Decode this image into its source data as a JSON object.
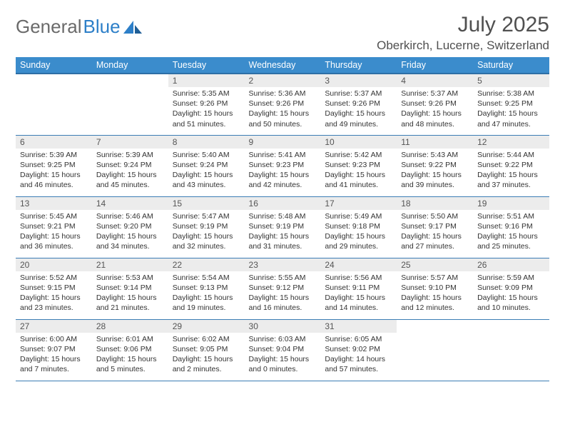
{
  "brand": {
    "part1": "General",
    "part2": "Blue"
  },
  "title": "July 2025",
  "location": "Oberkirch, Lucerne, Switzerland",
  "colors": {
    "header_bg": "#3b8ccc",
    "header_border": "#2d6fa6",
    "row_border": "#3b7db5",
    "daynum_bg": "#ececec",
    "text": "#333333",
    "brand_gray": "#6a6a6a",
    "brand_blue": "#2d7fc8"
  },
  "week_days": [
    "Sunday",
    "Monday",
    "Tuesday",
    "Wednesday",
    "Thursday",
    "Friday",
    "Saturday"
  ],
  "first_weekday_index": 2,
  "days": [
    {
      "n": 1,
      "sunrise": "5:35 AM",
      "sunset": "9:26 PM",
      "daylight": "15 hours and 51 minutes."
    },
    {
      "n": 2,
      "sunrise": "5:36 AM",
      "sunset": "9:26 PM",
      "daylight": "15 hours and 50 minutes."
    },
    {
      "n": 3,
      "sunrise": "5:37 AM",
      "sunset": "9:26 PM",
      "daylight": "15 hours and 49 minutes."
    },
    {
      "n": 4,
      "sunrise": "5:37 AM",
      "sunset": "9:26 PM",
      "daylight": "15 hours and 48 minutes."
    },
    {
      "n": 5,
      "sunrise": "5:38 AM",
      "sunset": "9:25 PM",
      "daylight": "15 hours and 47 minutes."
    },
    {
      "n": 6,
      "sunrise": "5:39 AM",
      "sunset": "9:25 PM",
      "daylight": "15 hours and 46 minutes."
    },
    {
      "n": 7,
      "sunrise": "5:39 AM",
      "sunset": "9:24 PM",
      "daylight": "15 hours and 45 minutes."
    },
    {
      "n": 8,
      "sunrise": "5:40 AM",
      "sunset": "9:24 PM",
      "daylight": "15 hours and 43 minutes."
    },
    {
      "n": 9,
      "sunrise": "5:41 AM",
      "sunset": "9:23 PM",
      "daylight": "15 hours and 42 minutes."
    },
    {
      "n": 10,
      "sunrise": "5:42 AM",
      "sunset": "9:23 PM",
      "daylight": "15 hours and 41 minutes."
    },
    {
      "n": 11,
      "sunrise": "5:43 AM",
      "sunset": "9:22 PM",
      "daylight": "15 hours and 39 minutes."
    },
    {
      "n": 12,
      "sunrise": "5:44 AM",
      "sunset": "9:22 PM",
      "daylight": "15 hours and 37 minutes."
    },
    {
      "n": 13,
      "sunrise": "5:45 AM",
      "sunset": "9:21 PM",
      "daylight": "15 hours and 36 minutes."
    },
    {
      "n": 14,
      "sunrise": "5:46 AM",
      "sunset": "9:20 PM",
      "daylight": "15 hours and 34 minutes."
    },
    {
      "n": 15,
      "sunrise": "5:47 AM",
      "sunset": "9:19 PM",
      "daylight": "15 hours and 32 minutes."
    },
    {
      "n": 16,
      "sunrise": "5:48 AM",
      "sunset": "9:19 PM",
      "daylight": "15 hours and 31 minutes."
    },
    {
      "n": 17,
      "sunrise": "5:49 AM",
      "sunset": "9:18 PM",
      "daylight": "15 hours and 29 minutes."
    },
    {
      "n": 18,
      "sunrise": "5:50 AM",
      "sunset": "9:17 PM",
      "daylight": "15 hours and 27 minutes."
    },
    {
      "n": 19,
      "sunrise": "5:51 AM",
      "sunset": "9:16 PM",
      "daylight": "15 hours and 25 minutes."
    },
    {
      "n": 20,
      "sunrise": "5:52 AM",
      "sunset": "9:15 PM",
      "daylight": "15 hours and 23 minutes."
    },
    {
      "n": 21,
      "sunrise": "5:53 AM",
      "sunset": "9:14 PM",
      "daylight": "15 hours and 21 minutes."
    },
    {
      "n": 22,
      "sunrise": "5:54 AM",
      "sunset": "9:13 PM",
      "daylight": "15 hours and 19 minutes."
    },
    {
      "n": 23,
      "sunrise": "5:55 AM",
      "sunset": "9:12 PM",
      "daylight": "15 hours and 16 minutes."
    },
    {
      "n": 24,
      "sunrise": "5:56 AM",
      "sunset": "9:11 PM",
      "daylight": "15 hours and 14 minutes."
    },
    {
      "n": 25,
      "sunrise": "5:57 AM",
      "sunset": "9:10 PM",
      "daylight": "15 hours and 12 minutes."
    },
    {
      "n": 26,
      "sunrise": "5:59 AM",
      "sunset": "9:09 PM",
      "daylight": "15 hours and 10 minutes."
    },
    {
      "n": 27,
      "sunrise": "6:00 AM",
      "sunset": "9:07 PM",
      "daylight": "15 hours and 7 minutes."
    },
    {
      "n": 28,
      "sunrise": "6:01 AM",
      "sunset": "9:06 PM",
      "daylight": "15 hours and 5 minutes."
    },
    {
      "n": 29,
      "sunrise": "6:02 AM",
      "sunset": "9:05 PM",
      "daylight": "15 hours and 2 minutes."
    },
    {
      "n": 30,
      "sunrise": "6:03 AM",
      "sunset": "9:04 PM",
      "daylight": "15 hours and 0 minutes."
    },
    {
      "n": 31,
      "sunrise": "6:05 AM",
      "sunset": "9:02 PM",
      "daylight": "14 hours and 57 minutes."
    }
  ],
  "labels": {
    "sunrise": "Sunrise:",
    "sunset": "Sunset:",
    "daylight": "Daylight:"
  }
}
